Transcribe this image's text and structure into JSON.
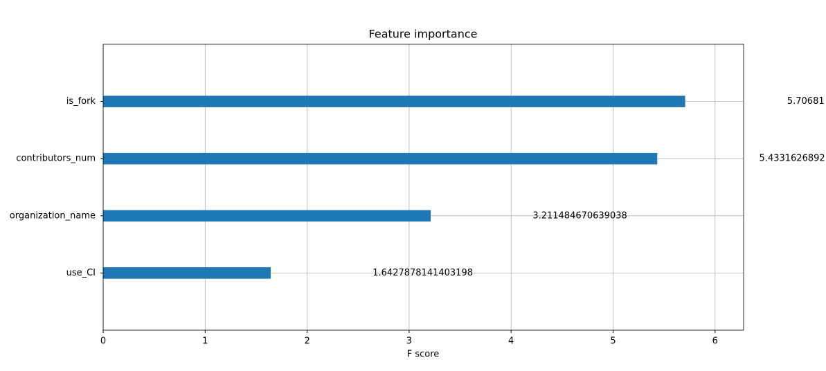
{
  "chart_data": {
    "type": "barh",
    "title": "Feature importance",
    "xlabel": "F score",
    "categories": [
      "is_fork",
      "contributors_num",
      "organization_name",
      "use_CI"
    ],
    "values": [
      5.70681,
      5.4331626892,
      3.211484670639038,
      1.6427878141403198
    ],
    "color": "#1f77b4",
    "xlim": [
      0,
      6.28
    ],
    "xticks": [
      0,
      1,
      2,
      3,
      4,
      5,
      6
    ],
    "grid": true
  }
}
